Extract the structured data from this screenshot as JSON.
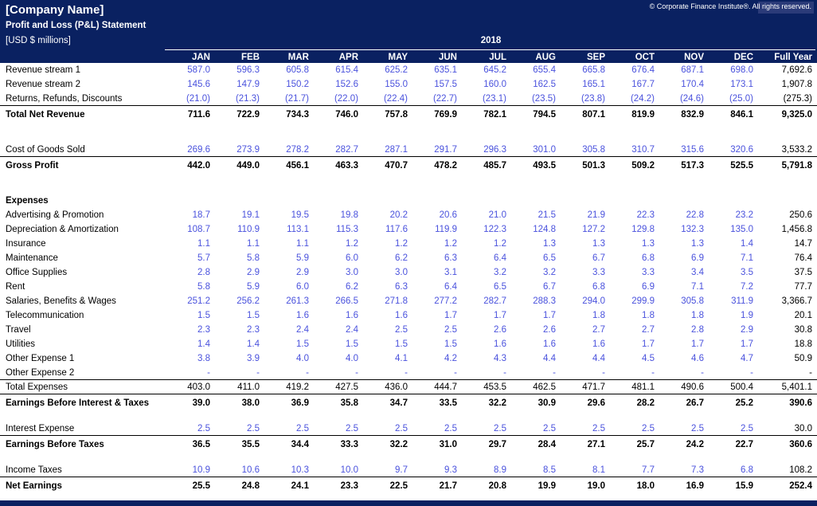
{
  "header": {
    "company_name": "[Company Name]",
    "statement_title": "Profit and Loss (P&L) Statement",
    "units_label": "[USD $ millions]",
    "year_label": "2018",
    "copyright": "© Corporate Finance Institute®. All rights reserved.",
    "columns": [
      "JAN",
      "FEB",
      "MAR",
      "APR",
      "MAY",
      "JUN",
      "JUL",
      "AUG",
      "SEP",
      "OCT",
      "NOV",
      "DEC",
      "Full Year"
    ]
  },
  "colors": {
    "header_navy": "#0a2161",
    "copyright_highlight_navy": "#2b3b79",
    "input_blue": "#4a52dd",
    "total_black": "#000000",
    "background_white": "#ffffff"
  },
  "table": {
    "rows": [
      {
        "style": "input",
        "label": "Revenue stream 1",
        "values": [
          "587.0",
          "596.3",
          "605.8",
          "615.4",
          "625.2",
          "635.1",
          "645.2",
          "655.4",
          "665.8",
          "676.4",
          "687.1",
          "698.0",
          "7,692.6"
        ]
      },
      {
        "style": "input",
        "label": "Revenue stream 2",
        "values": [
          "145.6",
          "147.9",
          "150.2",
          "152.6",
          "155.0",
          "157.5",
          "160.0",
          "162.5",
          "165.1",
          "167.7",
          "170.4",
          "173.1",
          "1,907.8"
        ]
      },
      {
        "style": "input",
        "label": "Returns, Refunds, Discounts",
        "border_bottom": true,
        "values": [
          "(21.0)",
          "(21.3)",
          "(21.7)",
          "(22.0)",
          "(22.4)",
          "(22.7)",
          "(23.1)",
          "(23.5)",
          "(23.8)",
          "(24.2)",
          "(24.6)",
          "(25.0)",
          "(275.3)"
        ]
      },
      {
        "style": "total",
        "tall": true,
        "label": "Total Net Revenue",
        "values": [
          "711.6",
          "722.9",
          "734.3",
          "746.0",
          "757.8",
          "769.9",
          "782.1",
          "794.5",
          "807.1",
          "819.9",
          "832.9",
          "846.1",
          "9,325.0"
        ]
      },
      {
        "style": "spacer",
        "height": 24
      },
      {
        "style": "input",
        "label": "Cost of Goods Sold",
        "border_bottom": true,
        "values": [
          "269.6",
          "273.9",
          "278.2",
          "282.7",
          "287.1",
          "291.7",
          "296.3",
          "301.0",
          "305.8",
          "310.7",
          "315.6",
          "320.6",
          "3,533.2"
        ]
      },
      {
        "style": "total",
        "tall": true,
        "label": "Gross Profit",
        "values": [
          "442.0",
          "449.0",
          "456.1",
          "463.3",
          "470.7",
          "478.2",
          "485.7",
          "493.5",
          "501.3",
          "509.2",
          "517.3",
          "525.5",
          "5,791.8"
        ]
      },
      {
        "style": "spacer",
        "height": 24
      },
      {
        "style": "section",
        "label": "Expenses",
        "values": []
      },
      {
        "style": "input",
        "label": "Advertising & Promotion",
        "values": [
          "18.7",
          "19.1",
          "19.5",
          "19.8",
          "20.2",
          "20.6",
          "21.0",
          "21.5",
          "21.9",
          "22.3",
          "22.8",
          "23.2",
          "250.6"
        ]
      },
      {
        "style": "input",
        "label": "Depreciation & Amortization",
        "values": [
          "108.7",
          "110.9",
          "113.1",
          "115.3",
          "117.6",
          "119.9",
          "122.3",
          "124.8",
          "127.2",
          "129.8",
          "132.3",
          "135.0",
          "1,456.8"
        ]
      },
      {
        "style": "input",
        "label": "Insurance",
        "values": [
          "1.1",
          "1.1",
          "1.1",
          "1.2",
          "1.2",
          "1.2",
          "1.2",
          "1.3",
          "1.3",
          "1.3",
          "1.3",
          "1.4",
          "14.7"
        ]
      },
      {
        "style": "input",
        "label": "Maintenance",
        "values": [
          "5.7",
          "5.8",
          "5.9",
          "6.0",
          "6.2",
          "6.3",
          "6.4",
          "6.5",
          "6.7",
          "6.8",
          "6.9",
          "7.1",
          "76.4"
        ]
      },
      {
        "style": "input",
        "label": "Office Supplies",
        "values": [
          "2.8",
          "2.9",
          "2.9",
          "3.0",
          "3.0",
          "3.1",
          "3.2",
          "3.2",
          "3.3",
          "3.3",
          "3.4",
          "3.5",
          "37.5"
        ]
      },
      {
        "style": "input",
        "label": "Rent",
        "values": [
          "5.8",
          "5.9",
          "6.0",
          "6.2",
          "6.3",
          "6.4",
          "6.5",
          "6.7",
          "6.8",
          "6.9",
          "7.1",
          "7.2",
          "77.7"
        ]
      },
      {
        "style": "input",
        "label": "Salaries, Benefits & Wages",
        "values": [
          "251.2",
          "256.2",
          "261.3",
          "266.5",
          "271.8",
          "277.2",
          "282.7",
          "288.3",
          "294.0",
          "299.9",
          "305.8",
          "311.9",
          "3,366.7"
        ]
      },
      {
        "style": "input",
        "label": "Telecommunication",
        "values": [
          "1.5",
          "1.5",
          "1.6",
          "1.6",
          "1.6",
          "1.7",
          "1.7",
          "1.7",
          "1.8",
          "1.8",
          "1.8",
          "1.9",
          "20.1"
        ]
      },
      {
        "style": "input",
        "label": "Travel",
        "values": [
          "2.3",
          "2.3",
          "2.4",
          "2.4",
          "2.5",
          "2.5",
          "2.6",
          "2.6",
          "2.7",
          "2.7",
          "2.8",
          "2.9",
          "30.8"
        ]
      },
      {
        "style": "input",
        "label": "Utilities",
        "values": [
          "1.4",
          "1.4",
          "1.5",
          "1.5",
          "1.5",
          "1.5",
          "1.6",
          "1.6",
          "1.6",
          "1.7",
          "1.7",
          "1.7",
          "18.8"
        ]
      },
      {
        "style": "input",
        "label": "Other Expense 1",
        "values": [
          "3.8",
          "3.9",
          "4.0",
          "4.0",
          "4.1",
          "4.2",
          "4.3",
          "4.4",
          "4.4",
          "4.5",
          "4.6",
          "4.7",
          "50.9"
        ]
      },
      {
        "style": "input",
        "label": "Other Expense 2",
        "border_bottom": true,
        "values": [
          "-",
          "-",
          "-",
          "-",
          "-",
          "-",
          "-",
          "-",
          "-",
          "-",
          "-",
          "-",
          "-"
        ]
      },
      {
        "style": "plain",
        "label": "Total Expenses",
        "border_bottom": true,
        "values": [
          "403.0",
          "411.0",
          "419.2",
          "427.5",
          "436.0",
          "444.7",
          "453.5",
          "462.5",
          "471.7",
          "481.1",
          "490.6",
          "500.4",
          "5,401.1"
        ]
      },
      {
        "style": "total",
        "tall": true,
        "label": "Earnings Before Interest & Taxes",
        "values": [
          "39.0",
          "38.0",
          "36.9",
          "35.8",
          "34.7",
          "33.5",
          "32.2",
          "30.9",
          "29.6",
          "28.2",
          "26.7",
          "25.2",
          "390.6"
        ]
      },
      {
        "style": "spacer",
        "height": 12
      },
      {
        "style": "input",
        "label": "Interest Expense",
        "border_bottom": true,
        "values": [
          "2.5",
          "2.5",
          "2.5",
          "2.5",
          "2.5",
          "2.5",
          "2.5",
          "2.5",
          "2.5",
          "2.5",
          "2.5",
          "2.5",
          "30.0"
        ]
      },
      {
        "style": "total",
        "tall": true,
        "label": "Earnings Before Taxes",
        "values": [
          "36.5",
          "35.5",
          "34.4",
          "33.3",
          "32.2",
          "31.0",
          "29.7",
          "28.4",
          "27.1",
          "25.7",
          "24.2",
          "22.7",
          "360.6"
        ]
      },
      {
        "style": "spacer",
        "height": 12
      },
      {
        "style": "input",
        "label": "Income Taxes",
        "border_bottom": true,
        "values": [
          "10.9",
          "10.6",
          "10.3",
          "10.0",
          "9.7",
          "9.3",
          "8.9",
          "8.5",
          "8.1",
          "7.7",
          "7.3",
          "6.8",
          "108.2"
        ]
      },
      {
        "style": "total",
        "tall": true,
        "label": "Net Earnings",
        "values": [
          "25.5",
          "24.8",
          "24.1",
          "23.3",
          "22.5",
          "21.7",
          "20.8",
          "19.9",
          "19.0",
          "18.0",
          "16.9",
          "15.9",
          "252.4"
        ]
      }
    ]
  }
}
